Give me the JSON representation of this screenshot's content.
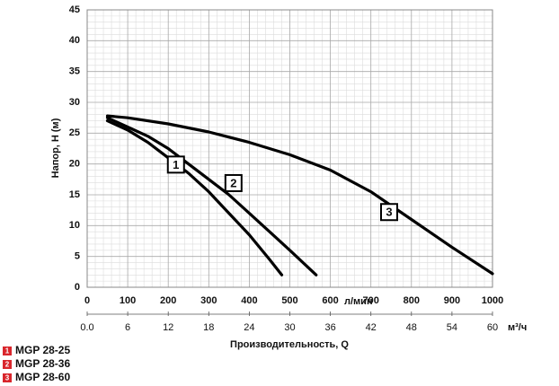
{
  "chart_data": {
    "type": "line",
    "xlabel": "Производительность, Q",
    "ylabel": "Напор, H (м)",
    "x_unit": "л/мин",
    "x2_unit": "м³/ч",
    "xlim": [
      0,
      1000
    ],
    "xticks": [
      0,
      100,
      200,
      300,
      400,
      500,
      600,
      700,
      800,
      900,
      1000
    ],
    "x2lim": [
      0,
      60
    ],
    "x2ticks": [
      {
        "value": 0,
        "label": "0.0"
      },
      6,
      12,
      18,
      24,
      30,
      36,
      42,
      48,
      54,
      60
    ],
    "ylim": [
      0,
      45
    ],
    "yticks": [
      0,
      5,
      10,
      15,
      20,
      25,
      30,
      35,
      40,
      45
    ],
    "grid": true,
    "legend_marker_color": "#d9262c",
    "series": [
      {
        "name": "MGP 28-25",
        "label": "1",
        "color": "#000000",
        "x": [
          50,
          100,
          150,
          200,
          250,
          300,
          350,
          400,
          450,
          480
        ],
        "values": [
          27,
          25.5,
          23.5,
          21,
          18.5,
          15.5,
          12,
          8.5,
          4.5,
          2
        ]
      },
      {
        "name": "MGP 28-36",
        "label": "2",
        "color": "#000000",
        "x": [
          50,
          100,
          150,
          200,
          250,
          300,
          350,
          400,
          450,
          500,
          565
        ],
        "values": [
          27.5,
          26,
          24.5,
          22.5,
          20,
          17.5,
          15,
          12,
          9,
          6,
          2
        ]
      },
      {
        "name": "MGP 28-60",
        "label": "3",
        "color": "#000000",
        "x": [
          50,
          100,
          200,
          300,
          400,
          500,
          600,
          700,
          800,
          900,
          1000
        ],
        "values": [
          27.8,
          27.5,
          26.5,
          25.2,
          23.5,
          21.5,
          19,
          15.5,
          11,
          6.5,
          2.2
        ]
      }
    ],
    "annotations": [
      {
        "text": "1",
        "x": 219,
        "y": 19.9
      },
      {
        "text": "2",
        "x": 361,
        "y": 16.9
      },
      {
        "text": "3",
        "x": 745,
        "y": 12.2
      }
    ]
  }
}
